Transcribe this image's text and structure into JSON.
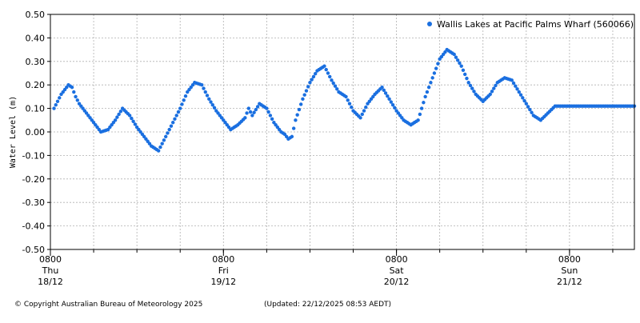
{
  "chart_data": {
    "type": "scatter",
    "title": "",
    "xlabel": "",
    "ylabel": "Water Level (m)",
    "ylim": [
      -0.5,
      0.5
    ],
    "yticks": [
      "0.50",
      "0.40",
      "0.30",
      "0.20",
      "0.10",
      "0.00",
      "-0.10",
      "-0.20",
      "-0.30",
      "-0.40",
      "-0.50"
    ],
    "xlim_hours": [
      0,
      81
    ],
    "xticks": [
      {
        "time": "0800",
        "day": "Thu",
        "date": "18/12"
      },
      {
        "time": "0800",
        "day": "Fri",
        "date": "19/12"
      },
      {
        "time": "0800",
        "day": "Sat",
        "date": "20/12"
      },
      {
        "time": "0800",
        "day": "Sun",
        "date": "21/12"
      }
    ],
    "grid": true,
    "legend_position": "top-right",
    "series": [
      {
        "name": "Wallis Lakes at Pacific Palms Wharf (560066)",
        "color": "#1a6fe0",
        "x": [
          0.5,
          1,
          1.5,
          2,
          2.5,
          3,
          3.5,
          4,
          5,
          6,
          7,
          8,
          9,
          10,
          11,
          12,
          13,
          14,
          15,
          16,
          17,
          18,
          19,
          20,
          21,
          22,
          23,
          24,
          25,
          26,
          27,
          27.5,
          28,
          29,
          30,
          31,
          31.5,
          32,
          32.5,
          33,
          33.5,
          34,
          35,
          36,
          37,
          38,
          39,
          40,
          41,
          42,
          43,
          44,
          45,
          46,
          47,
          48,
          49,
          50,
          51,
          52,
          53,
          54,
          55,
          56,
          57,
          58,
          59,
          60,
          61,
          62,
          63,
          64,
          65,
          66,
          67,
          68,
          69,
          70,
          71,
          72,
          73,
          74,
          75,
          76,
          77,
          78,
          79,
          80,
          81
        ],
        "y": [
          0.1,
          0.13,
          0.16,
          0.18,
          0.2,
          0.19,
          0.15,
          0.12,
          0.08,
          0.04,
          0.0,
          0.01,
          0.05,
          0.1,
          0.07,
          0.02,
          -0.02,
          -0.06,
          -0.08,
          -0.02,
          0.04,
          0.1,
          0.17,
          0.21,
          0.2,
          0.14,
          0.09,
          0.05,
          0.01,
          0.03,
          0.06,
          0.1,
          0.07,
          0.12,
          0.1,
          0.04,
          0.02,
          0.0,
          -0.01,
          -0.03,
          -0.02,
          0.05,
          0.14,
          0.21,
          0.26,
          0.28,
          0.22,
          0.17,
          0.15,
          0.09,
          0.06,
          0.12,
          0.16,
          0.19,
          0.14,
          0.09,
          0.05,
          0.03,
          0.05,
          0.15,
          0.23,
          0.31,
          0.35,
          0.33,
          0.28,
          0.21,
          0.16,
          0.13,
          0.16,
          0.21,
          0.23,
          0.22,
          0.17,
          0.12,
          0.07,
          0.05,
          0.08,
          0.11,
          0.11,
          0.11,
          0.11,
          0.11,
          0.11,
          0.11,
          0.11,
          0.11,
          0.11,
          0.11,
          0.11
        ]
      }
    ]
  },
  "footer": {
    "copyright": "© Copyright Australian Bureau of Meteorology 2025",
    "updated": "(Updated: 22/12/2025 08:53 AEDT)"
  }
}
